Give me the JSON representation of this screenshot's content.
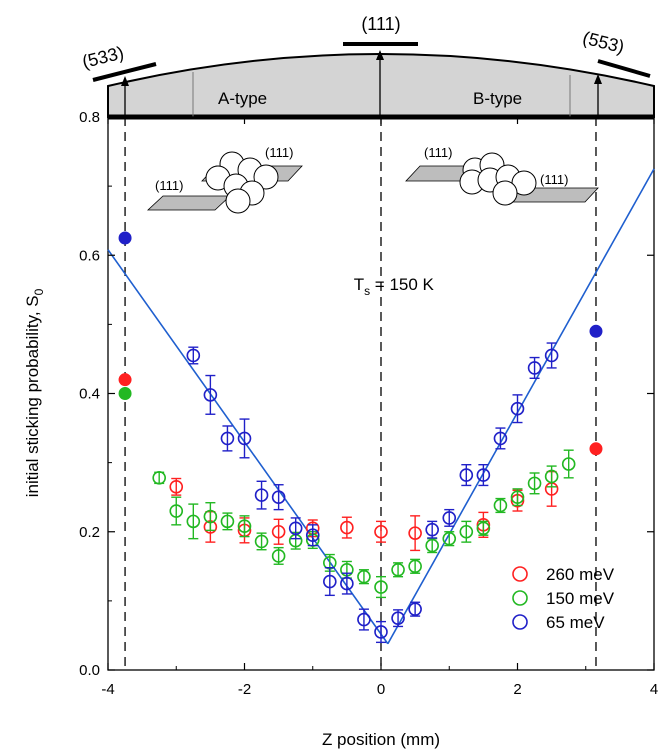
{
  "chart_data": {
    "type": "scatter",
    "xlabel": "Z position (mm)",
    "ylabel_main": "initial sticking probability, S",
    "ylabel_sub": "0",
    "xlim": [
      -4,
      4
    ],
    "ylim": [
      0.0,
      0.8
    ],
    "x_ticks": [
      -4,
      -2,
      0,
      2,
      4
    ],
    "x_tick_labels": [
      "-4",
      "-2",
      "0",
      "2",
      "4"
    ],
    "y_ticks": [
      0.0,
      0.2,
      0.4,
      0.6,
      0.8
    ],
    "y_tick_labels": [
      "0.0",
      "0.2",
      "0.4",
      "0.6",
      "0.8"
    ],
    "annotation_main": "T",
    "annotation_sub": "s",
    "annotation_rest": " = 150 K",
    "annotation_x": -0.4,
    "annotation_y": 0.55,
    "vertical_dashed_lines": [
      -3.75,
      0,
      3.15
    ],
    "top_labels": {
      "facet_533": "(533)",
      "facet_111": "(111)",
      "facet_553": "(553)",
      "a_type": "A-type",
      "b_type": "B-type"
    },
    "inset_labels": {
      "left_top": "(111)",
      "left_bottom": "(111)",
      "right_top": "(111)",
      "right_bottom": "(111)"
    },
    "legend_position": "bottom-right",
    "series": [
      {
        "name": "260 meV",
        "color": "#ff2020",
        "points": [
          {
            "x": -3.0,
            "y": 0.265,
            "err": 0.012
          },
          {
            "x": -2.5,
            "y": 0.207,
            "err": 0.022
          },
          {
            "x": -2.0,
            "y": 0.202,
            "err": 0.018
          },
          {
            "x": -1.5,
            "y": 0.2,
            "err": 0.018
          },
          {
            "x": -1.0,
            "y": 0.205,
            "err": 0.012
          },
          {
            "x": -0.5,
            "y": 0.206,
            "err": 0.015
          },
          {
            "x": 0.0,
            "y": 0.2,
            "err": 0.015
          },
          {
            "x": 0.5,
            "y": 0.198,
            "err": 0.025
          },
          {
            "x": 1.5,
            "y": 0.21,
            "err": 0.018
          },
          {
            "x": 2.0,
            "y": 0.245,
            "err": 0.015
          },
          {
            "x": 2.5,
            "y": 0.262,
            "err": 0.025
          }
        ],
        "filled_points": [
          {
            "x": -3.75,
            "y": 0.42
          },
          {
            "x": 3.15,
            "y": 0.32
          }
        ]
      },
      {
        "name": "150 meV",
        "color": "#22b822",
        "points": [
          {
            "x": -3.25,
            "y": 0.278,
            "err": 0.008
          },
          {
            "x": -3.0,
            "y": 0.23,
            "err": 0.02
          },
          {
            "x": -2.75,
            "y": 0.215,
            "err": 0.025
          },
          {
            "x": -2.5,
            "y": 0.222,
            "err": 0.02
          },
          {
            "x": -2.25,
            "y": 0.215,
            "err": 0.012
          },
          {
            "x": -2.0,
            "y": 0.208,
            "err": 0.015
          },
          {
            "x": -1.75,
            "y": 0.186,
            "err": 0.012
          },
          {
            "x": -1.5,
            "y": 0.165,
            "err": 0.012
          },
          {
            "x": -1.25,
            "y": 0.187,
            "err": 0.012
          },
          {
            "x": -1.0,
            "y": 0.188,
            "err": 0.012
          },
          {
            "x": -0.75,
            "y": 0.155,
            "err": 0.012
          },
          {
            "x": -0.5,
            "y": 0.145,
            "err": 0.012
          },
          {
            "x": -0.25,
            "y": 0.135,
            "err": 0.01
          },
          {
            "x": 0.0,
            "y": 0.12,
            "err": 0.015
          },
          {
            "x": 0.25,
            "y": 0.145,
            "err": 0.01
          },
          {
            "x": 0.5,
            "y": 0.15,
            "err": 0.01
          },
          {
            "x": 0.75,
            "y": 0.18,
            "err": 0.01
          },
          {
            "x": 1.0,
            "y": 0.19,
            "err": 0.01
          },
          {
            "x": 1.25,
            "y": 0.2,
            "err": 0.015
          },
          {
            "x": 1.5,
            "y": 0.205,
            "err": 0.01
          },
          {
            "x": 1.75,
            "y": 0.238,
            "err": 0.01
          },
          {
            "x": 2.0,
            "y": 0.25,
            "err": 0.012
          },
          {
            "x": 2.25,
            "y": 0.27,
            "err": 0.015
          },
          {
            "x": 2.5,
            "y": 0.28,
            "err": 0.015
          },
          {
            "x": 2.75,
            "y": 0.298,
            "err": 0.02
          }
        ],
        "filled_points": [
          {
            "x": -3.75,
            "y": 0.4
          }
        ]
      },
      {
        "name": "65 meV",
        "color": "#2020c8",
        "points": [
          {
            "x": -2.75,
            "y": 0.455,
            "err": 0.012
          },
          {
            "x": -2.5,
            "y": 0.398,
            "err": 0.028
          },
          {
            "x": -2.25,
            "y": 0.335,
            "err": 0.018
          },
          {
            "x": -2.0,
            "y": 0.335,
            "err": 0.028
          },
          {
            "x": -1.75,
            "y": 0.253,
            "err": 0.02
          },
          {
            "x": -1.5,
            "y": 0.25,
            "err": 0.018
          },
          {
            "x": -1.25,
            "y": 0.205,
            "err": 0.015
          },
          {
            "x": -1.0,
            "y": 0.195,
            "err": 0.015
          },
          {
            "x": -0.75,
            "y": 0.128,
            "err": 0.02
          },
          {
            "x": -0.5,
            "y": 0.125,
            "err": 0.015
          },
          {
            "x": -0.25,
            "y": 0.073,
            "err": 0.015
          },
          {
            "x": 0.0,
            "y": 0.055,
            "err": 0.015
          },
          {
            "x": 0.25,
            "y": 0.075,
            "err": 0.012
          },
          {
            "x": 0.5,
            "y": 0.088,
            "err": 0.01
          },
          {
            "x": 0.75,
            "y": 0.203,
            "err": 0.012
          },
          {
            "x": 1.0,
            "y": 0.22,
            "err": 0.012
          },
          {
            "x": 1.25,
            "y": 0.282,
            "err": 0.015
          },
          {
            "x": 1.5,
            "y": 0.282,
            "err": 0.015
          },
          {
            "x": 1.75,
            "y": 0.335,
            "err": 0.015
          },
          {
            "x": 2.0,
            "y": 0.378,
            "err": 0.02
          },
          {
            "x": 2.25,
            "y": 0.437,
            "err": 0.015
          },
          {
            "x": 2.5,
            "y": 0.455,
            "err": 0.018
          }
        ],
        "filled_points": [
          {
            "x": -3.75,
            "y": 0.625
          },
          {
            "x": 3.15,
            "y": 0.49
          }
        ]
      }
    ],
    "fit_lines": [
      {
        "color": "#1f5fcf",
        "x": [
          -4,
          0.1
        ],
        "y": [
          0.608,
          0.038
        ]
      },
      {
        "color": "#1f5fcf",
        "x": [
          0.1,
          4
        ],
        "y": [
          0.038,
          0.725
        ]
      }
    ]
  }
}
